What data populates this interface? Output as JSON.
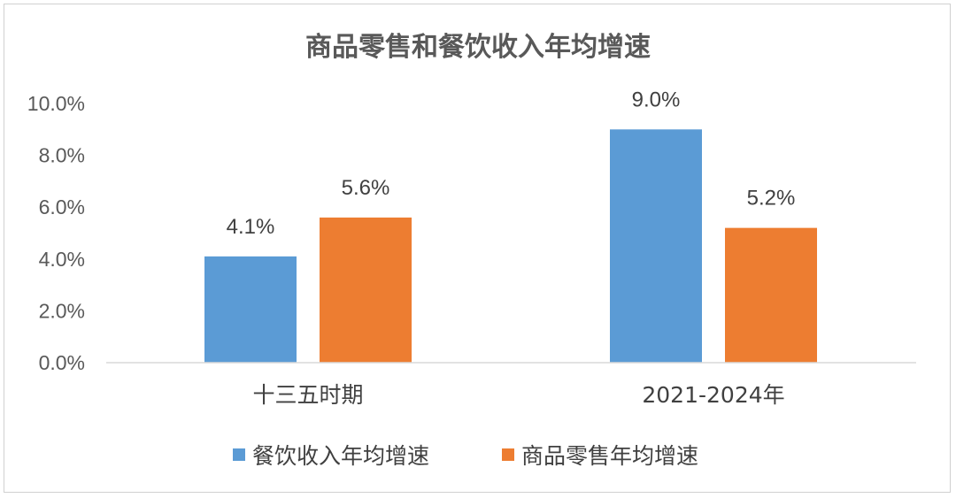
{
  "chart_data": {
    "type": "bar",
    "title": "商品零售和餐饮收入年均增速",
    "categories": [
      "十三五时期",
      "2021-2024年"
    ],
    "series": [
      {
        "name": "餐饮收入年均增速",
        "color": "#5B9BD5",
        "values": [
          4.1,
          9.0
        ],
        "labels": [
          "4.1%",
          "9.0%"
        ]
      },
      {
        "name": "商品零售年均增速",
        "color": "#ED7D31",
        "values": [
          5.6,
          5.2
        ],
        "labels": [
          "5.6%",
          "5.2%"
        ]
      }
    ],
    "ylim": [
      0,
      10
    ],
    "yticks": [
      0,
      2,
      4,
      6,
      8,
      10
    ],
    "ytick_labels": [
      "0.0%",
      "2.0%",
      "4.0%",
      "6.0%",
      "8.0%",
      "10.0%"
    ],
    "legend_position": "bottom",
    "grid": false,
    "axis_color": "#d9d9d9"
  }
}
